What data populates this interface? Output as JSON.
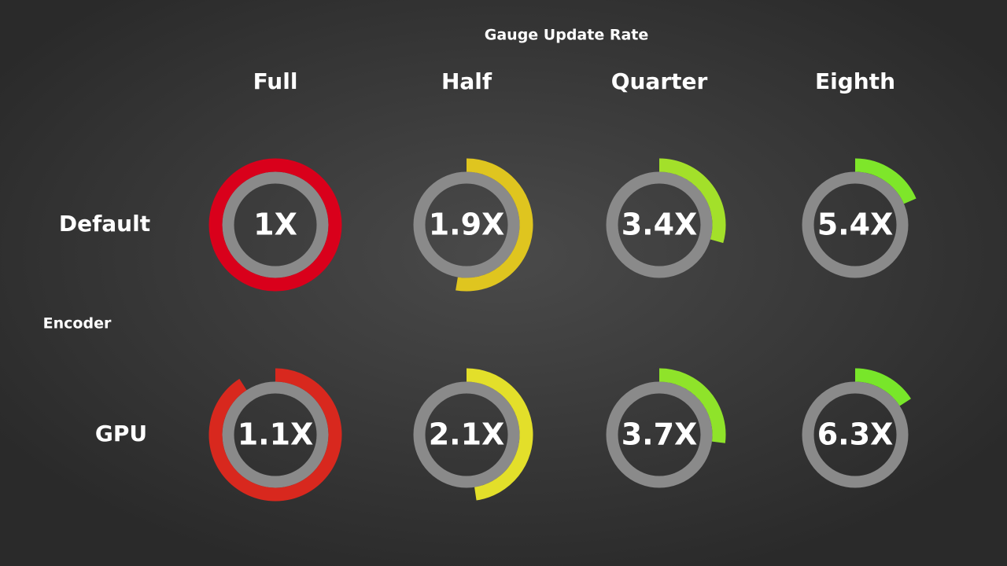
{
  "chart_data": {
    "type": "gauge",
    "title": "Gauge Update Rate",
    "y_label": "Encoder",
    "categories": [
      "Full",
      "Half",
      "Quarter",
      "Eighth"
    ],
    "series": [
      {
        "name": "Default",
        "colors": [
          "#d9001b",
          "#dfc51f",
          "#a3e02a",
          "#7ee62a"
        ],
        "values": [
          1,
          1.9,
          3.4,
          5.4
        ],
        "value_labels": [
          "1X",
          "1.9X",
          "3.4X",
          "5.4X"
        ]
      },
      {
        "name": "GPU",
        "colors": [
          "#d8281e",
          "#e3df2a",
          "#8fe32a",
          "#78e62a"
        ],
        "values": [
          1.1,
          2.1,
          3.7,
          6.3
        ],
        "value_labels": [
          "1.1X",
          "2.1X",
          "3.7X",
          "6.3X"
        ]
      }
    ]
  }
}
